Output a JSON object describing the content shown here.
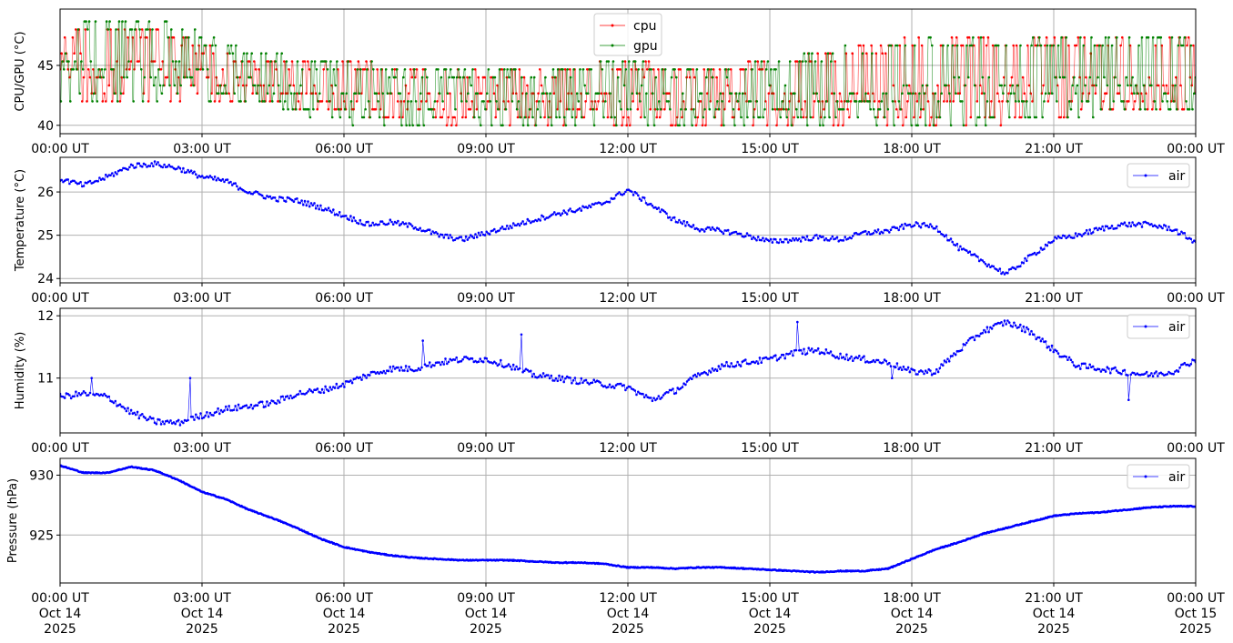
{
  "x_tick_labels": [
    "00:00 UT",
    "03:00 UT",
    "06:00 UT",
    "09:00 UT",
    "12:00 UT",
    "15:00 UT",
    "18:00 UT",
    "21:00 UT",
    "00:00 UT"
  ],
  "x_tick_dates": [
    [
      "Oct 14",
      "2025"
    ],
    [
      "Oct 14",
      "2025"
    ],
    [
      "Oct 14",
      "2025"
    ],
    [
      "Oct 14",
      "2025"
    ],
    [
      "Oct 14",
      "2025"
    ],
    [
      "Oct 14",
      "2025"
    ],
    [
      "Oct 14",
      "2025"
    ],
    [
      "Oct 14",
      "2025"
    ],
    [
      "Oct 15",
      "2025"
    ]
  ],
  "colors": {
    "cpu": "#ff0000",
    "gpu": "#008000",
    "air": "#0000ff",
    "grid": "#b0b0b0"
  },
  "chart_data": [
    {
      "type": "line",
      "ylabel": "CPU/GPU (°C)",
      "ylim": [
        39.3,
        49.7
      ],
      "yticks": [
        40,
        45
      ],
      "x_range": [
        "2025-10-14 00:00 UT",
        "2025-10-15 00:00 UT"
      ],
      "grid": true,
      "legend": "top-center",
      "x": [
        "00:00",
        "02:00",
        "04:00",
        "06:00",
        "08:00",
        "10:00",
        "12:00",
        "14:00",
        "16:00",
        "18:00",
        "20:00",
        "22:00",
        "24:00"
      ],
      "series": [
        {
          "name": "cpu",
          "low": [
            41.8,
            41.8,
            41.8,
            40.7,
            40.0,
            40.0,
            40.0,
            40.0,
            40.0,
            40.0,
            40.0,
            40.7,
            40.7
          ],
          "high": [
            48.4,
            48.4,
            46.0,
            45.5,
            45.0,
            45.0,
            45.5,
            45.0,
            46.5,
            47.5,
            47.5,
            47.5,
            47.5
          ],
          "typical": [
            45.0,
            44.5,
            43.0,
            42.0,
            42.0,
            42.0,
            42.0,
            42.0,
            42.0,
            42.5,
            43.0,
            43.0,
            43.0
          ]
        },
        {
          "name": "gpu",
          "low": [
            41.8,
            41.8,
            41.8,
            40.0,
            39.8,
            39.8,
            39.8,
            39.8,
            39.8,
            40.0,
            40.0,
            40.7,
            40.7
          ],
          "high": [
            49.1,
            49.1,
            46.5,
            45.5,
            45.0,
            45.0,
            45.5,
            45.0,
            46.5,
            47.5,
            47.5,
            48.0,
            47.5
          ],
          "typical": [
            45.0,
            44.5,
            43.0,
            42.0,
            42.0,
            42.0,
            42.0,
            42.0,
            42.0,
            42.5,
            43.0,
            43.0,
            43.0
          ]
        }
      ]
    },
    {
      "type": "line",
      "ylabel": "Temperature (°C)",
      "ylim": [
        23.9,
        26.8
      ],
      "yticks": [
        24,
        25,
        26
      ],
      "grid": true,
      "legend": "top-right",
      "x": [
        "00:00",
        "00:30",
        "01:00",
        "01:30",
        "02:00",
        "02:30",
        "03:00",
        "03:30",
        "04:00",
        "04:30",
        "05:00",
        "05:30",
        "06:00",
        "06:30",
        "07:00",
        "07:30",
        "08:00",
        "08:30",
        "09:00",
        "09:30",
        "10:00",
        "10:30",
        "11:00",
        "11:30",
        "12:00",
        "12:30",
        "13:00",
        "13:30",
        "14:00",
        "14:30",
        "15:00",
        "15:30",
        "16:00",
        "16:30",
        "17:00",
        "17:30",
        "18:00",
        "18:30",
        "19:00",
        "19:30",
        "20:00",
        "20:30",
        "21:00",
        "21:30",
        "22:00",
        "22:30",
        "23:00",
        "23:30",
        "24:00"
      ],
      "series": [
        {
          "name": "air",
          "values": [
            26.3,
            26.15,
            26.35,
            26.6,
            26.65,
            26.55,
            26.35,
            26.25,
            26.0,
            25.85,
            25.8,
            25.65,
            25.45,
            25.25,
            25.3,
            25.2,
            25.0,
            24.9,
            25.05,
            25.2,
            25.35,
            25.5,
            25.6,
            25.75,
            26.05,
            25.7,
            25.35,
            25.15,
            25.1,
            25.0,
            24.85,
            24.9,
            24.95,
            24.9,
            25.05,
            25.1,
            25.25,
            25.2,
            24.7,
            24.4,
            24.1,
            24.5,
            24.9,
            25.0,
            25.15,
            25.25,
            25.25,
            25.15,
            24.85
          ]
        }
      ]
    },
    {
      "type": "line",
      "ylabel": "Humidity (%)",
      "ylim": [
        10.12,
        12.12
      ],
      "yticks": [
        11,
        12
      ],
      "grid": true,
      "legend": "top-right",
      "x": [
        "00:00",
        "00:30",
        "01:00",
        "01:30",
        "02:00",
        "02:30",
        "03:00",
        "03:30",
        "04:00",
        "04:30",
        "05:00",
        "05:30",
        "06:00",
        "06:30",
        "07:00",
        "07:30",
        "08:00",
        "08:30",
        "09:00",
        "09:30",
        "10:00",
        "10:30",
        "11:00",
        "11:30",
        "12:00",
        "12:30",
        "13:00",
        "13:30",
        "14:00",
        "14:30",
        "15:00",
        "15:30",
        "16:00",
        "16:30",
        "17:00",
        "17:30",
        "18:00",
        "18:30",
        "19:00",
        "19:30",
        "20:00",
        "20:30",
        "21:00",
        "21:30",
        "22:00",
        "22:30",
        "23:00",
        "23:30",
        "24:00"
      ],
      "series": [
        {
          "name": "air",
          "values": [
            10.7,
            10.75,
            10.7,
            10.45,
            10.3,
            10.28,
            10.4,
            10.5,
            10.55,
            10.6,
            10.75,
            10.8,
            10.9,
            11.05,
            11.15,
            11.15,
            11.25,
            11.3,
            11.3,
            11.2,
            11.05,
            11.0,
            10.95,
            10.9,
            10.85,
            10.65,
            10.8,
            11.05,
            11.2,
            11.25,
            11.3,
            11.4,
            11.45,
            11.35,
            11.3,
            11.25,
            11.1,
            11.1,
            11.45,
            11.75,
            11.9,
            11.75,
            11.45,
            11.2,
            11.15,
            11.1,
            11.05,
            11.1,
            11.3
          ]
        }
      ],
      "spikes": [
        [
          "00:40",
          11.0
        ],
        [
          "02:45",
          11.0
        ],
        [
          "07:40",
          11.6
        ],
        [
          "09:45",
          11.7
        ],
        [
          "15:35",
          11.9
        ],
        [
          "17:35",
          11.0
        ],
        [
          "20:35",
          11.7
        ],
        [
          "22:35",
          10.65
        ]
      ]
    },
    {
      "type": "line",
      "ylabel": "Pressure (hPa)",
      "ylim": [
        921.0,
        931.4
      ],
      "yticks": [
        925,
        930
      ],
      "grid": true,
      "legend": "top-right",
      "x": [
        "00:00",
        "00:30",
        "01:00",
        "01:30",
        "02:00",
        "02:30",
        "03:00",
        "03:30",
        "04:00",
        "04:30",
        "05:00",
        "05:30",
        "06:00",
        "06:30",
        "07:00",
        "07:30",
        "08:00",
        "08:30",
        "09:00",
        "09:30",
        "10:00",
        "10:30",
        "11:00",
        "11:30",
        "12:00",
        "12:30",
        "13:00",
        "13:30",
        "14:00",
        "14:30",
        "15:00",
        "15:30",
        "16:00",
        "16:30",
        "17:00",
        "17:30",
        "18:00",
        "18:30",
        "19:00",
        "19:30",
        "20:00",
        "20:30",
        "21:00",
        "21:30",
        "22:00",
        "22:30",
        "23:00",
        "23:30",
        "24:00"
      ],
      "series": [
        {
          "name": "air",
          "values": [
            930.8,
            930.2,
            930.2,
            930.7,
            930.4,
            929.6,
            928.6,
            928.0,
            927.1,
            926.4,
            925.6,
            924.7,
            924.0,
            923.6,
            923.3,
            923.1,
            923.0,
            922.9,
            922.9,
            922.9,
            922.8,
            922.7,
            922.7,
            922.6,
            922.3,
            922.3,
            922.2,
            922.3,
            922.3,
            922.2,
            922.1,
            922.0,
            921.9,
            922.0,
            922.0,
            922.2,
            923.0,
            923.8,
            924.4,
            925.1,
            925.6,
            926.1,
            926.6,
            926.8,
            926.9,
            927.1,
            927.3,
            927.4,
            927.4
          ]
        }
      ]
    }
  ]
}
